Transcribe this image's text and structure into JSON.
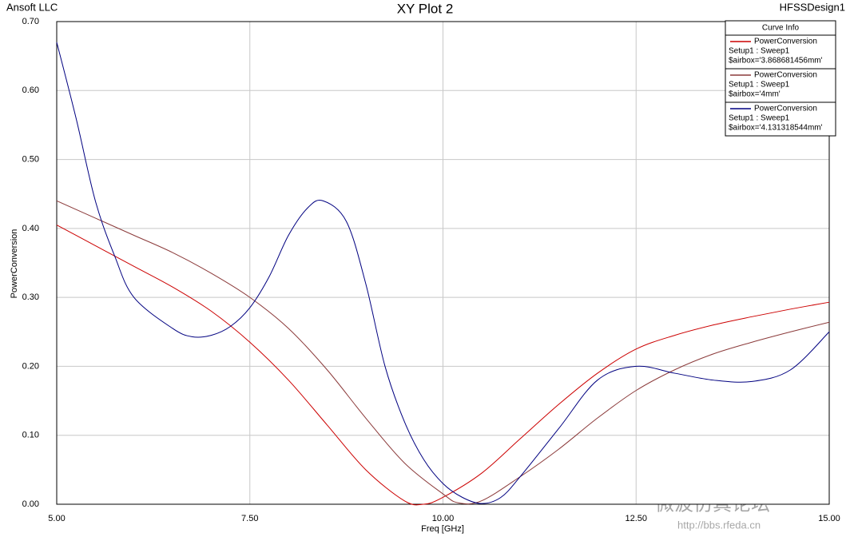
{
  "chart_data": {
    "type": "line",
    "title": "XY Plot 2",
    "company": "Ansoft LLC",
    "design": "HFSSDesign1",
    "xlabel": "Freq [GHz]",
    "ylabel": "PowerConversion",
    "legend_title": "Curve Info",
    "legend": "top-right",
    "grid": true,
    "watermark": [
      "RFEDA.CN",
      "微波仿真论坛",
      "http://bbs.rfeda.cn"
    ],
    "xlim": [
      5,
      15
    ],
    "xticks": [
      {
        "value": 5,
        "label": "5.00"
      },
      {
        "value": 7.5,
        "label": "7.50"
      },
      {
        "value": 10,
        "label": "10.00"
      },
      {
        "value": 12.5,
        "label": "12.50"
      },
      {
        "value": 15,
        "label": "15.00"
      }
    ],
    "ylim": [
      0,
      0.7
    ],
    "yticks": [
      {
        "value": 0,
        "label": "0.00"
      },
      {
        "value": 0.1,
        "label": "0.10"
      },
      {
        "value": 0.2,
        "label": "0.20"
      },
      {
        "value": 0.3,
        "label": "0.30"
      },
      {
        "value": 0.4,
        "label": "0.40"
      },
      {
        "value": 0.5,
        "label": "0.50"
      },
      {
        "value": 0.6,
        "label": "0.60"
      },
      {
        "value": 0.7,
        "label": "0.70"
      }
    ],
    "series": [
      {
        "name": "PowerConversion",
        "setup": "Setup1 : Sweep1",
        "variant": "$airbox='3.868681456mm'",
        "color": "#cc0000",
        "x": [
          5,
          5.5,
          6,
          6.5,
          7,
          7.5,
          8,
          8.5,
          9,
          9.5,
          9.75,
          10,
          10.5,
          11,
          11.5,
          12,
          12.5,
          13,
          13.5,
          14,
          14.5,
          15
        ],
        "values": [
          0.405,
          0.375,
          0.345,
          0.315,
          0.28,
          0.235,
          0.18,
          0.115,
          0.05,
          0.005,
          0,
          0.01,
          0.045,
          0.095,
          0.145,
          0.19,
          0.225,
          0.245,
          0.26,
          0.272,
          0.283,
          0.293
        ]
      },
      {
        "name": "PowerConversion",
        "setup": "Setup1 : Sweep1",
        "variant": "$airbox='4mm'",
        "color": "#8b3a3a",
        "x": [
          5,
          5.5,
          6,
          6.5,
          7,
          7.5,
          8,
          8.5,
          9,
          9.5,
          10,
          10.2,
          10.5,
          11,
          11.5,
          12,
          12.5,
          13,
          13.5,
          14,
          14.5,
          15
        ],
        "values": [
          0.44,
          0.415,
          0.39,
          0.365,
          0.335,
          0.3,
          0.255,
          0.195,
          0.125,
          0.06,
          0.015,
          0.002,
          0.005,
          0.04,
          0.08,
          0.125,
          0.165,
          0.195,
          0.218,
          0.235,
          0.25,
          0.264
        ]
      },
      {
        "name": "PowerConversion",
        "setup": "Setup1 : Sweep1",
        "variant": "$airbox='4.131318544mm'",
        "color": "#000080",
        "x": [
          5,
          5.25,
          5.5,
          5.75,
          6,
          6.5,
          6.75,
          7,
          7.25,
          7.5,
          7.75,
          8,
          8.25,
          8.45,
          8.75,
          9,
          9.25,
          9.5,
          9.75,
          10,
          10.25,
          10.5,
          10.75,
          11,
          11.5,
          12,
          12.5,
          13,
          13.5,
          14,
          14.5,
          15
        ],
        "values": [
          0.67,
          0.56,
          0.44,
          0.36,
          0.3,
          0.255,
          0.243,
          0.245,
          0.258,
          0.285,
          0.33,
          0.39,
          0.43,
          0.44,
          0.41,
          0.32,
          0.2,
          0.12,
          0.065,
          0.03,
          0.01,
          0.001,
          0.01,
          0.04,
          0.11,
          0.18,
          0.2,
          0.19,
          0.18,
          0.178,
          0.195,
          0.25
        ]
      }
    ]
  }
}
